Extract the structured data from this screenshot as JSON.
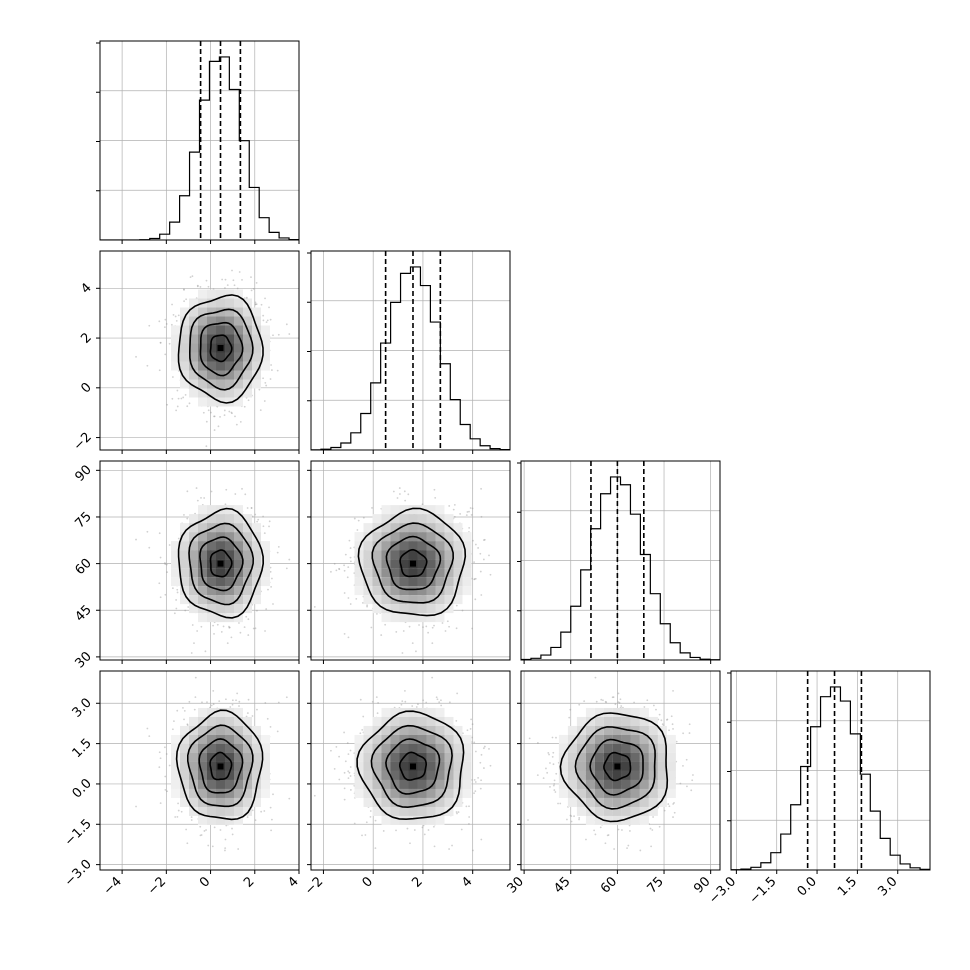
{
  "chart_data": {
    "type": "corner",
    "grid": true,
    "quantiles": [
      0.16,
      0.5,
      0.84
    ],
    "colors": {
      "axis": "#000000",
      "grid": "#b0b0b0",
      "points": "#9a9a9a",
      "hist": "#000000"
    },
    "params": [
      {
        "range": [
          -5,
          4
        ],
        "ticks": [
          -4,
          -2,
          0,
          2,
          4
        ],
        "tick_labels": [
          "−4",
          "−2",
          "0",
          "2",
          "4"
        ],
        "mean": 0.45,
        "sd": 0.95,
        "quantile_values": [
          -0.45,
          0.45,
          1.35
        ]
      },
      {
        "range": [
          -2.5,
          5.5
        ],
        "ticks": [
          -2,
          0,
          2,
          4
        ],
        "tick_labels": [
          "−2",
          "0",
          "2",
          "4"
        ],
        "mean": 1.6,
        "sd": 1.05,
        "quantile_values": [
          0.5,
          1.6,
          2.7
        ]
      },
      {
        "range": [
          29,
          93
        ],
        "ticks": [
          30,
          45,
          60,
          75,
          90
        ],
        "tick_labels": [
          "30",
          "45",
          "60",
          "75",
          "90"
        ],
        "mean": 60,
        "sd": 8.5,
        "quantile_values": [
          51.5,
          60,
          68.5
        ]
      },
      {
        "range": [
          -3.2,
          4.2
        ],
        "ticks": [
          -3.0,
          -1.5,
          0.0,
          1.5,
          3.0
        ],
        "tick_labels": [
          "−3.0",
          "−1.5",
          "0.0",
          "1.5",
          "3.0"
        ],
        "mean": 0.65,
        "sd": 1.0,
        "quantile_values": [
          -0.35,
          0.65,
          1.65
        ]
      }
    ]
  }
}
